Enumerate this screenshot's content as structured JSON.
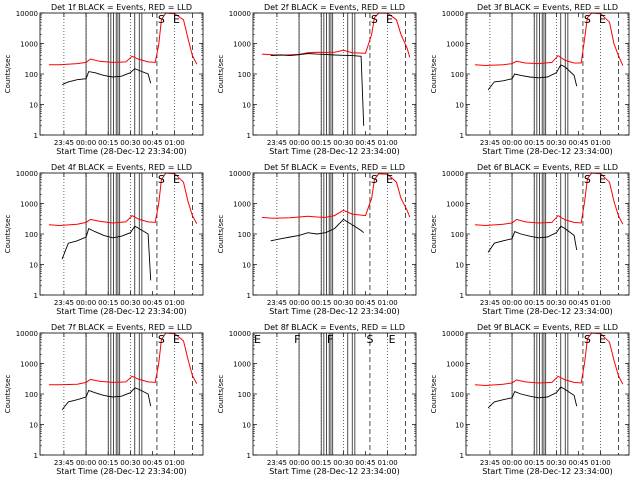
{
  "chart_data": {
    "type": "line",
    "grid": false,
    "y_scale": "log",
    "ylim": [
      1,
      10000
    ],
    "y_ticks": [
      1,
      10,
      100,
      1000,
      10000
    ],
    "y_tick_labels": [
      "1",
      "10",
      "100",
      "1000",
      "10000"
    ],
    "x_tick_labels": [
      "23:45",
      "00:00",
      "00:15",
      "00:30",
      "00:45",
      "01:00"
    ],
    "xlabel": "Start Time (28-Dec-12 23:34:00)",
    "ylabel": "Counts/sec",
    "colors": {
      "events": "#000000",
      "lld": "#ff0000"
    },
    "panels": [
      {
        "title": "Det 1f BLACK = Events, RED = LLD",
        "markers": [
          "S",
          "E"
        ],
        "events": [
          [
            23.73,
            45
          ],
          [
            23.8,
            55
          ],
          [
            23.9,
            65
          ],
          [
            24.0,
            70
          ],
          [
            24.03,
            120
          ],
          [
            24.1,
            110
          ],
          [
            24.2,
            90
          ],
          [
            24.3,
            80
          ],
          [
            24.4,
            85
          ],
          [
            24.5,
            110
          ],
          [
            24.55,
            150
          ],
          [
            24.6,
            130
          ],
          [
            24.7,
            100
          ],
          [
            24.73,
            50
          ]
        ],
        "lld": [
          [
            23.58,
            200
          ],
          [
            23.7,
            200
          ],
          [
            23.9,
            220
          ],
          [
            24.0,
            240
          ],
          [
            24.05,
            310
          ],
          [
            24.15,
            260
          ],
          [
            24.3,
            240
          ],
          [
            24.45,
            250
          ],
          [
            24.52,
            380
          ],
          [
            24.6,
            300
          ],
          [
            24.7,
            250
          ],
          [
            24.78,
            240
          ],
          [
            24.82,
            900
          ],
          [
            24.85,
            6000
          ],
          [
            24.9,
            10000
          ],
          [
            25.0,
            9500
          ],
          [
            25.1,
            6000
          ],
          [
            25.15,
            1500
          ],
          [
            25.2,
            400
          ],
          [
            25.25,
            210
          ]
        ]
      },
      {
        "title": "Det 2f BLACK = Events, RED = LLD",
        "markers": [
          "S",
          "E"
        ],
        "events": [
          [
            23.68,
            400
          ],
          [
            23.8,
            420
          ],
          [
            23.9,
            400
          ],
          [
            24.0,
            430
          ],
          [
            24.1,
            470
          ],
          [
            24.2,
            450
          ],
          [
            24.3,
            440
          ],
          [
            24.4,
            420
          ],
          [
            24.5,
            410
          ],
          [
            24.6,
            400
          ],
          [
            24.7,
            380
          ],
          [
            24.73,
            2
          ]
        ],
        "lld": [
          [
            23.58,
            450
          ],
          [
            23.7,
            430
          ],
          [
            23.85,
            420
          ],
          [
            24.0,
            440
          ],
          [
            24.1,
            500
          ],
          [
            24.2,
            520
          ],
          [
            24.3,
            510
          ],
          [
            24.4,
            520
          ],
          [
            24.5,
            600
          ],
          [
            24.6,
            500
          ],
          [
            24.75,
            480
          ],
          [
            24.82,
            2000
          ],
          [
            24.85,
            7000
          ],
          [
            24.9,
            10000
          ],
          [
            25.0,
            9800
          ],
          [
            25.1,
            6000
          ],
          [
            25.15,
            2000
          ],
          [
            25.22,
            700
          ],
          [
            25.25,
            350
          ]
        ]
      },
      {
        "title": "Det 3f BLACK = Events, RED = LLD",
        "markers": [
          "S",
          "E"
        ],
        "events": [
          [
            23.73,
            30
          ],
          [
            23.8,
            55
          ],
          [
            23.9,
            60
          ],
          [
            24.0,
            70
          ],
          [
            24.03,
            100
          ],
          [
            24.1,
            90
          ],
          [
            24.2,
            80
          ],
          [
            24.3,
            75
          ],
          [
            24.4,
            80
          ],
          [
            24.5,
            110
          ],
          [
            24.55,
            200
          ],
          [
            24.6,
            170
          ],
          [
            24.7,
            90
          ],
          [
            24.73,
            40
          ]
        ],
        "lld": [
          [
            23.58,
            200
          ],
          [
            23.7,
            190
          ],
          [
            23.9,
            200
          ],
          [
            24.0,
            220
          ],
          [
            24.05,
            260
          ],
          [
            24.15,
            230
          ],
          [
            24.3,
            220
          ],
          [
            24.45,
            240
          ],
          [
            24.52,
            400
          ],
          [
            24.6,
            280
          ],
          [
            24.7,
            230
          ],
          [
            24.78,
            230
          ],
          [
            24.82,
            1500
          ],
          [
            24.85,
            7000
          ],
          [
            24.9,
            10000
          ],
          [
            25.0,
            9500
          ],
          [
            25.1,
            5000
          ],
          [
            25.15,
            1000
          ],
          [
            25.2,
            400
          ],
          [
            25.25,
            190
          ]
        ]
      },
      {
        "title": "Det 4f BLACK = Events, RED = LLD",
        "markers": [
          "S",
          "E"
        ],
        "events": [
          [
            23.73,
            15
          ],
          [
            23.8,
            50
          ],
          [
            23.9,
            60
          ],
          [
            24.0,
            80
          ],
          [
            24.03,
            150
          ],
          [
            24.1,
            120
          ],
          [
            24.2,
            90
          ],
          [
            24.3,
            75
          ],
          [
            24.4,
            85
          ],
          [
            24.5,
            110
          ],
          [
            24.55,
            180
          ],
          [
            24.6,
            150
          ],
          [
            24.7,
            100
          ],
          [
            24.73,
            3
          ]
        ],
        "lld": [
          [
            23.58,
            200
          ],
          [
            23.7,
            190
          ],
          [
            23.9,
            210
          ],
          [
            24.0,
            240
          ],
          [
            24.05,
            300
          ],
          [
            24.15,
            260
          ],
          [
            24.3,
            230
          ],
          [
            24.45,
            250
          ],
          [
            24.52,
            400
          ],
          [
            24.6,
            300
          ],
          [
            24.7,
            250
          ],
          [
            24.78,
            240
          ],
          [
            24.82,
            1000
          ],
          [
            24.85,
            6000
          ],
          [
            24.9,
            10000
          ],
          [
            25.0,
            9500
          ],
          [
            25.1,
            5000
          ],
          [
            25.15,
            1200
          ],
          [
            25.2,
            400
          ],
          [
            25.25,
            220
          ]
        ]
      },
      {
        "title": "Det 5f BLACK = Events, RED = LLD",
        "markers": [
          "S",
          "E"
        ],
        "events": [
          [
            23.68,
            60
          ],
          [
            23.8,
            70
          ],
          [
            23.9,
            80
          ],
          [
            24.0,
            90
          ],
          [
            24.1,
            110
          ],
          [
            24.2,
            100
          ],
          [
            24.3,
            110
          ],
          [
            24.4,
            150
          ],
          [
            24.5,
            300
          ],
          [
            24.6,
            200
          ],
          [
            24.7,
            130
          ],
          [
            24.73,
            110
          ]
        ],
        "lld": [
          [
            23.58,
            350
          ],
          [
            23.7,
            330
          ],
          [
            23.9,
            340
          ],
          [
            24.0,
            360
          ],
          [
            24.1,
            380
          ],
          [
            24.2,
            360
          ],
          [
            24.3,
            350
          ],
          [
            24.4,
            400
          ],
          [
            24.5,
            600
          ],
          [
            24.6,
            450
          ],
          [
            24.75,
            400
          ],
          [
            24.82,
            1500
          ],
          [
            24.85,
            6000
          ],
          [
            24.9,
            9500
          ],
          [
            25.0,
            9000
          ],
          [
            25.1,
            5000
          ],
          [
            25.15,
            1500
          ],
          [
            25.22,
            600
          ],
          [
            25.25,
            360
          ]
        ]
      },
      {
        "title": "Det 6f BLACK = Events, RED = LLD",
        "markers": [
          "S",
          "E"
        ],
        "events": [
          [
            23.73,
            25
          ],
          [
            23.8,
            50
          ],
          [
            23.9,
            60
          ],
          [
            24.0,
            70
          ],
          [
            24.03,
            120
          ],
          [
            24.1,
            100
          ],
          [
            24.2,
            85
          ],
          [
            24.3,
            75
          ],
          [
            24.4,
            80
          ],
          [
            24.5,
            110
          ],
          [
            24.55,
            180
          ],
          [
            24.6,
            150
          ],
          [
            24.7,
            90
          ],
          [
            24.73,
            30
          ]
        ],
        "lld": [
          [
            23.58,
            200
          ],
          [
            23.7,
            190
          ],
          [
            23.9,
            210
          ],
          [
            24.0,
            230
          ],
          [
            24.05,
            300
          ],
          [
            24.15,
            250
          ],
          [
            24.3,
            230
          ],
          [
            24.45,
            240
          ],
          [
            24.52,
            400
          ],
          [
            24.6,
            290
          ],
          [
            24.7,
            240
          ],
          [
            24.78,
            230
          ],
          [
            24.82,
            1200
          ],
          [
            24.85,
            6500
          ],
          [
            24.9,
            10000
          ],
          [
            25.0,
            9500
          ],
          [
            25.1,
            5000
          ],
          [
            25.15,
            1200
          ],
          [
            25.2,
            400
          ],
          [
            25.25,
            210
          ]
        ]
      },
      {
        "title": "Det 7f BLACK = Events, RED = LLD",
        "markers": [
          "S",
          "E"
        ],
        "events": [
          [
            23.73,
            30
          ],
          [
            23.8,
            55
          ],
          [
            23.9,
            65
          ],
          [
            24.0,
            80
          ],
          [
            24.03,
            130
          ],
          [
            24.1,
            110
          ],
          [
            24.2,
            90
          ],
          [
            24.3,
            80
          ],
          [
            24.4,
            85
          ],
          [
            24.5,
            110
          ],
          [
            24.55,
            160
          ],
          [
            24.6,
            140
          ],
          [
            24.7,
            100
          ],
          [
            24.73,
            40
          ]
        ],
        "lld": [
          [
            23.58,
            200
          ],
          [
            23.7,
            200
          ],
          [
            23.9,
            210
          ],
          [
            24.0,
            240
          ],
          [
            24.05,
            300
          ],
          [
            24.15,
            260
          ],
          [
            24.3,
            240
          ],
          [
            24.45,
            250
          ],
          [
            24.52,
            380
          ],
          [
            24.6,
            300
          ],
          [
            24.7,
            250
          ],
          [
            24.78,
            240
          ],
          [
            24.82,
            1000
          ],
          [
            24.85,
            6000
          ],
          [
            24.9,
            10000
          ],
          [
            25.0,
            9500
          ],
          [
            25.1,
            5500
          ],
          [
            25.15,
            1400
          ],
          [
            25.2,
            400
          ],
          [
            25.25,
            220
          ]
        ]
      },
      {
        "title": "Det 8f BLACK = Events, RED = LLD",
        "markers": [
          "E",
          "F",
          "F",
          "S",
          "E"
        ],
        "events": [],
        "lld": []
      },
      {
        "title": "Det 9f BLACK = Events, RED = LLD",
        "markers": [
          "S",
          "E"
        ],
        "events": [
          [
            23.73,
            35
          ],
          [
            23.8,
            55
          ],
          [
            23.9,
            65
          ],
          [
            24.0,
            75
          ],
          [
            24.03,
            120
          ],
          [
            24.1,
            100
          ],
          [
            24.2,
            85
          ],
          [
            24.3,
            75
          ],
          [
            24.4,
            80
          ],
          [
            24.5,
            110
          ],
          [
            24.55,
            170
          ],
          [
            24.6,
            140
          ],
          [
            24.7,
            90
          ],
          [
            24.73,
            40
          ]
        ],
        "lld": [
          [
            23.58,
            200
          ],
          [
            23.7,
            190
          ],
          [
            23.9,
            210
          ],
          [
            24.0,
            230
          ],
          [
            24.05,
            290
          ],
          [
            24.15,
            250
          ],
          [
            24.3,
            230
          ],
          [
            24.45,
            240
          ],
          [
            24.52,
            380
          ],
          [
            24.6,
            290
          ],
          [
            24.7,
            240
          ],
          [
            24.78,
            230
          ],
          [
            24.82,
            1100
          ],
          [
            24.85,
            6500
          ],
          [
            24.9,
            10000
          ],
          [
            25.0,
            9500
          ],
          [
            25.1,
            5000
          ],
          [
            25.15,
            1300
          ],
          [
            25.2,
            400
          ],
          [
            25.25,
            210
          ]
        ]
      }
    ]
  }
}
